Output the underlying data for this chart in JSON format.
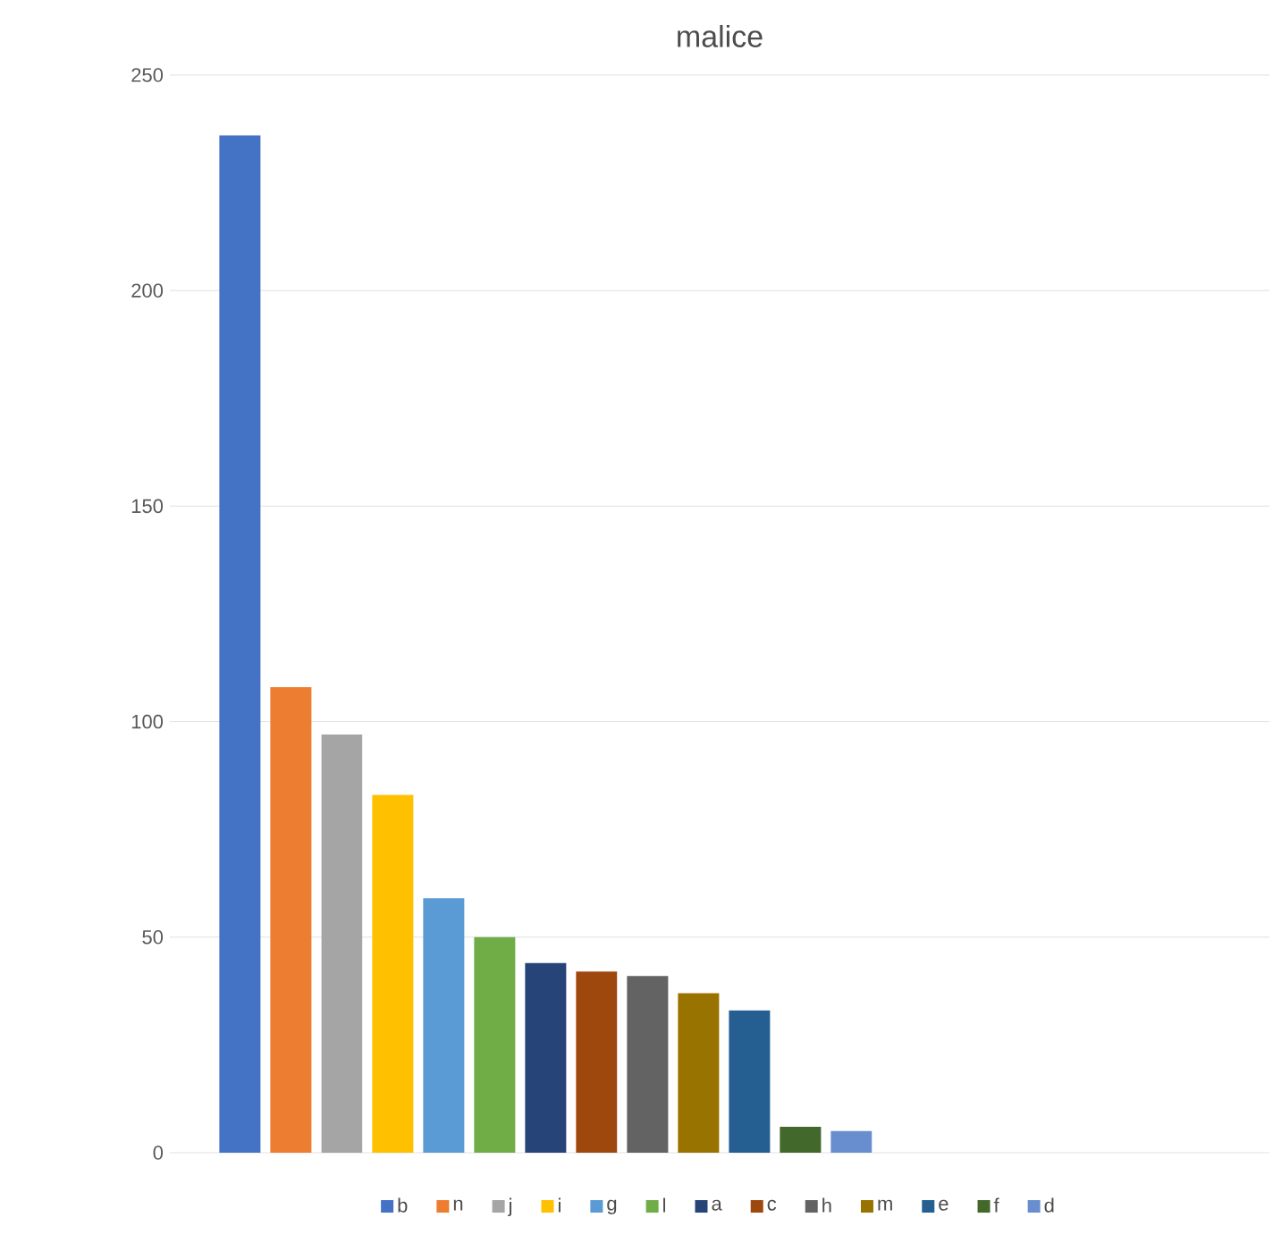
{
  "chart_data": {
    "type": "bar",
    "title": "malice",
    "categories": [
      null
    ],
    "series": [
      {
        "name": "b",
        "color": "#4472c4",
        "values": [
          236
        ]
      },
      {
        "name": "n",
        "color": "#ed7d31",
        "values": [
          108
        ]
      },
      {
        "name": "j",
        "color": "#a5a5a5",
        "values": [
          97
        ]
      },
      {
        "name": "i",
        "color": "#ffc000",
        "values": [
          83
        ]
      },
      {
        "name": "g",
        "color": "#5b9bd5",
        "values": [
          59
        ]
      },
      {
        "name": "l",
        "color": "#70ad47",
        "values": [
          50
        ]
      },
      {
        "name": "a",
        "color": "#264478",
        "values": [
          44
        ]
      },
      {
        "name": "c",
        "color": "#9e480e",
        "values": [
          42
        ]
      },
      {
        "name": "h",
        "color": "#636363",
        "values": [
          41
        ]
      },
      {
        "name": "m",
        "color": "#997300",
        "values": [
          37
        ]
      },
      {
        "name": "e",
        "color": "#255e91",
        "values": [
          33
        ]
      },
      {
        "name": "f",
        "color": "#43682b",
        "values": [
          6
        ]
      },
      {
        "name": "d",
        "color": "#698ed0",
        "values": [
          5
        ]
      }
    ],
    "ylim": [
      0,
      250
    ],
    "yticks": [
      0,
      50,
      100,
      150,
      200,
      250
    ],
    "grid": "y",
    "legend": "bottom"
  }
}
